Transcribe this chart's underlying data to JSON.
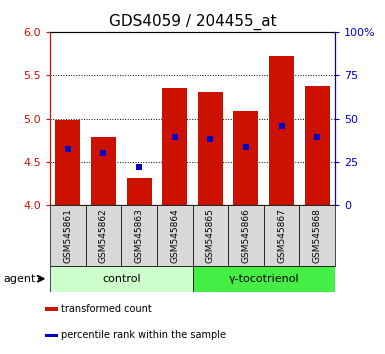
{
  "title": "GDS4059 / 204455_at",
  "samples": [
    "GSM545861",
    "GSM545862",
    "GSM545863",
    "GSM545864",
    "GSM545865",
    "GSM545866",
    "GSM545867",
    "GSM545868"
  ],
  "bar_values": [
    4.98,
    4.79,
    4.32,
    5.35,
    5.31,
    5.09,
    5.72,
    5.37
  ],
  "percentile_values": [
    4.65,
    4.6,
    4.44,
    4.79,
    4.76,
    4.67,
    4.91,
    4.79
  ],
  "ymin": 4.0,
  "ymax": 6.0,
  "yticks": [
    4.0,
    4.5,
    5.0,
    5.5,
    6.0
  ],
  "right_ylabels": [
    "0",
    "25",
    "50",
    "75",
    "100%"
  ],
  "right_pcts": [
    0,
    25,
    50,
    75,
    100
  ],
  "bar_color": "#cc1100",
  "percentile_color": "#0000cc",
  "bar_width": 0.7,
  "groups": [
    {
      "label": "control",
      "indices": [
        0,
        1,
        2,
        3
      ],
      "color": "#ccffcc"
    },
    {
      "label": "γ-tocotrienol",
      "indices": [
        4,
        5,
        6,
        7
      ],
      "color": "#44ee44"
    }
  ],
  "agent_label": "agent",
  "legend_items": [
    {
      "color": "#cc1100",
      "label": "transformed count"
    },
    {
      "color": "#0000cc",
      "label": "percentile rank within the sample"
    }
  ],
  "title_fontsize": 11,
  "left_tick_color": "#cc1100",
  "right_tick_color": "#0000cc",
  "sample_bg_color": "#d8d8d8",
  "plot_bg_color": "#ffffff"
}
